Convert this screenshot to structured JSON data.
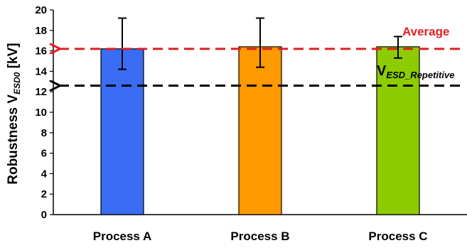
{
  "chart_data": {
    "type": "bar",
    "categories": [
      "Process A",
      "Process B",
      "Process C"
    ],
    "values": [
      16.2,
      16.4,
      16.4
    ],
    "error_low": [
      14.2,
      14.4,
      15.3
    ],
    "error_high": [
      19.2,
      19.2,
      17.4
    ],
    "bar_colors": [
      "#3a6cf4",
      "#ff9900",
      "#8ccc00"
    ],
    "ylabel_main": "Robustness V",
    "ylabel_sub": "ESD0",
    "ylabel_unit": " [kV]",
    "ylim": [
      0,
      20
    ],
    "yticks": [
      0,
      2,
      4,
      6,
      8,
      10,
      12,
      14,
      16,
      18,
      20
    ],
    "reference_lines": [
      {
        "label": "Average",
        "value": 16.2,
        "color": "#e02020"
      },
      {
        "label_main": "V",
        "label_sub": "ESD_Repetitive",
        "value": 12.6,
        "color": "#000000"
      }
    ],
    "grid": false
  }
}
